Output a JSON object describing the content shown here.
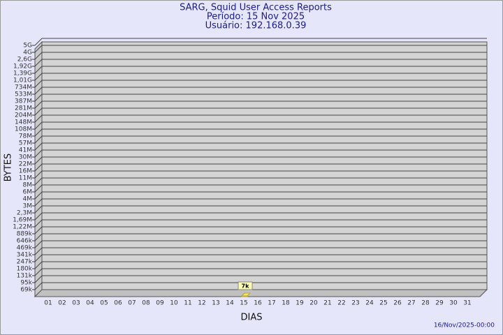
{
  "chart_data": {
    "type": "bar",
    "title": "SARG, Squid User Access Reports",
    "subtitle": "Período: 15 Nov 2025",
    "subtitle2": "Usuário: 192.168.0.39",
    "y_label": "BYTES",
    "x_label": "DIAS",
    "footer": "16/Nov/2025-00:00",
    "scale": "piecewise",
    "categories": [
      "01",
      "02",
      "03",
      "04",
      "05",
      "06",
      "07",
      "08",
      "09",
      "10",
      "11",
      "12",
      "13",
      "14",
      "15",
      "16",
      "17",
      "18",
      "19",
      "20",
      "21",
      "22",
      "23",
      "24",
      "25",
      "26",
      "27",
      "28",
      "29",
      "30",
      "31"
    ],
    "values": [
      null,
      null,
      null,
      null,
      null,
      null,
      null,
      null,
      null,
      null,
      null,
      null,
      null,
      null,
      7000,
      null,
      null,
      null,
      null,
      null,
      null,
      null,
      null,
      null,
      null,
      null,
      null,
      null,
      null,
      null,
      null
    ],
    "value_labels": [
      null,
      null,
      null,
      null,
      null,
      null,
      null,
      null,
      null,
      null,
      null,
      null,
      null,
      null,
      "7k",
      null,
      null,
      null,
      null,
      null,
      null,
      null,
      null,
      null,
      null,
      null,
      null,
      null,
      null,
      null,
      null
    ],
    "color": "#f2e46b",
    "ylim": [
      0,
      5000000000
    ],
    "yticks": [
      {
        "value": 5000000000,
        "label": "5G"
      },
      {
        "value": 4000000000,
        "label": "4G"
      },
      {
        "value": 2600000000,
        "label": "2,6G"
      },
      {
        "value": 1920000000,
        "label": "1,92G"
      },
      {
        "value": 1390000000,
        "label": "1,39G"
      },
      {
        "value": 1010000000,
        "label": "1,01G"
      },
      {
        "value": 734000000,
        "label": "734M"
      },
      {
        "value": 533000000,
        "label": "533M"
      },
      {
        "value": 387000000,
        "label": "387M"
      },
      {
        "value": 281000000,
        "label": "281M"
      },
      {
        "value": 204000000,
        "label": "204M"
      },
      {
        "value": 148000000,
        "label": "148M"
      },
      {
        "value": 108000000,
        "label": "108M"
      },
      {
        "value": 78000000,
        "label": "78M"
      },
      {
        "value": 57000000,
        "label": "57M"
      },
      {
        "value": 41000000,
        "label": "41M"
      },
      {
        "value": 30000000,
        "label": "30M"
      },
      {
        "value": 22000000,
        "label": "22M"
      },
      {
        "value": 16000000,
        "label": "16M"
      },
      {
        "value": 11000000,
        "label": "11M"
      },
      {
        "value": 8000000,
        "label": "8M"
      },
      {
        "value": 6000000,
        "label": "6M"
      },
      {
        "value": 4000000,
        "label": "4M"
      },
      {
        "value": 3000000,
        "label": "3M"
      },
      {
        "value": 2300000,
        "label": "2,3M"
      },
      {
        "value": 1690000,
        "label": "1,69M"
      },
      {
        "value": 1220000,
        "label": "1,22M"
      },
      {
        "value": 889000,
        "label": "889k"
      },
      {
        "value": 646000,
        "label": "646k"
      },
      {
        "value": 469000,
        "label": "469k"
      },
      {
        "value": 341000,
        "label": "341k"
      },
      {
        "value": 247000,
        "label": "247k"
      },
      {
        "value": 180000,
        "label": "180k"
      },
      {
        "value": 131000,
        "label": "131k"
      },
      {
        "value": 95000,
        "label": "95k"
      },
      {
        "value": 69000,
        "label": "69k"
      }
    ],
    "grid": true
  }
}
